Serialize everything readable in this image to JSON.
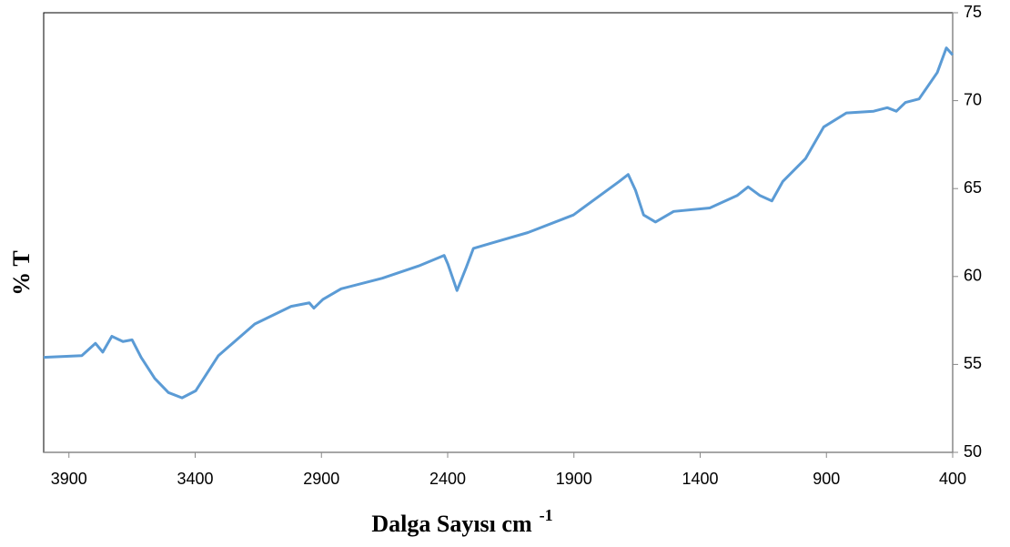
{
  "chart_data": {
    "type": "line",
    "x_label": "Dalga Sayısı cm",
    "x_label_sup": "-1",
    "y_label": "% T",
    "x": [
      4000,
      3849,
      3795,
      3766,
      3730,
      3686,
      3650,
      3614,
      3560,
      3506,
      3452,
      3398,
      3308,
      3164,
      3020,
      2948,
      2930,
      2894,
      2822,
      2659,
      2515,
      2414,
      2399,
      2363,
      2327,
      2298,
      2226,
      2082,
      1902,
      1721,
      1685,
      1656,
      1624,
      1577,
      1505,
      1362,
      1254,
      1210,
      1163,
      1116,
      1073,
      983,
      911,
      821,
      713,
      659,
      623,
      587,
      533,
      461,
      425,
      400
    ],
    "series": [
      {
        "name": "% T",
        "color": "#5b9bd5",
        "values": [
          55.4,
          55.5,
          56.2,
          55.7,
          56.6,
          56.3,
          56.4,
          55.4,
          54.2,
          53.4,
          53.1,
          53.5,
          55.5,
          57.3,
          58.3,
          58.5,
          58.2,
          58.7,
          59.3,
          59.9,
          60.6,
          61.2,
          60.7,
          59.2,
          60.5,
          61.6,
          61.9,
          62.5,
          63.5,
          65.4,
          65.8,
          64.9,
          63.5,
          63.1,
          63.7,
          63.9,
          64.6,
          65.1,
          64.6,
          64.3,
          65.4,
          66.7,
          68.5,
          69.3,
          69.4,
          69.6,
          69.4,
          69.9,
          70.1,
          71.6,
          73.0,
          72.6
        ]
      }
    ],
    "xlim": [
      4000,
      400
    ],
    "xticks": [
      3900,
      3400,
      2900,
      2400,
      1900,
      1400,
      900,
      400
    ],
    "ylim": [
      50,
      75
    ],
    "yticks": [
      50,
      55,
      60,
      65,
      70,
      75
    ],
    "grid": false
  }
}
